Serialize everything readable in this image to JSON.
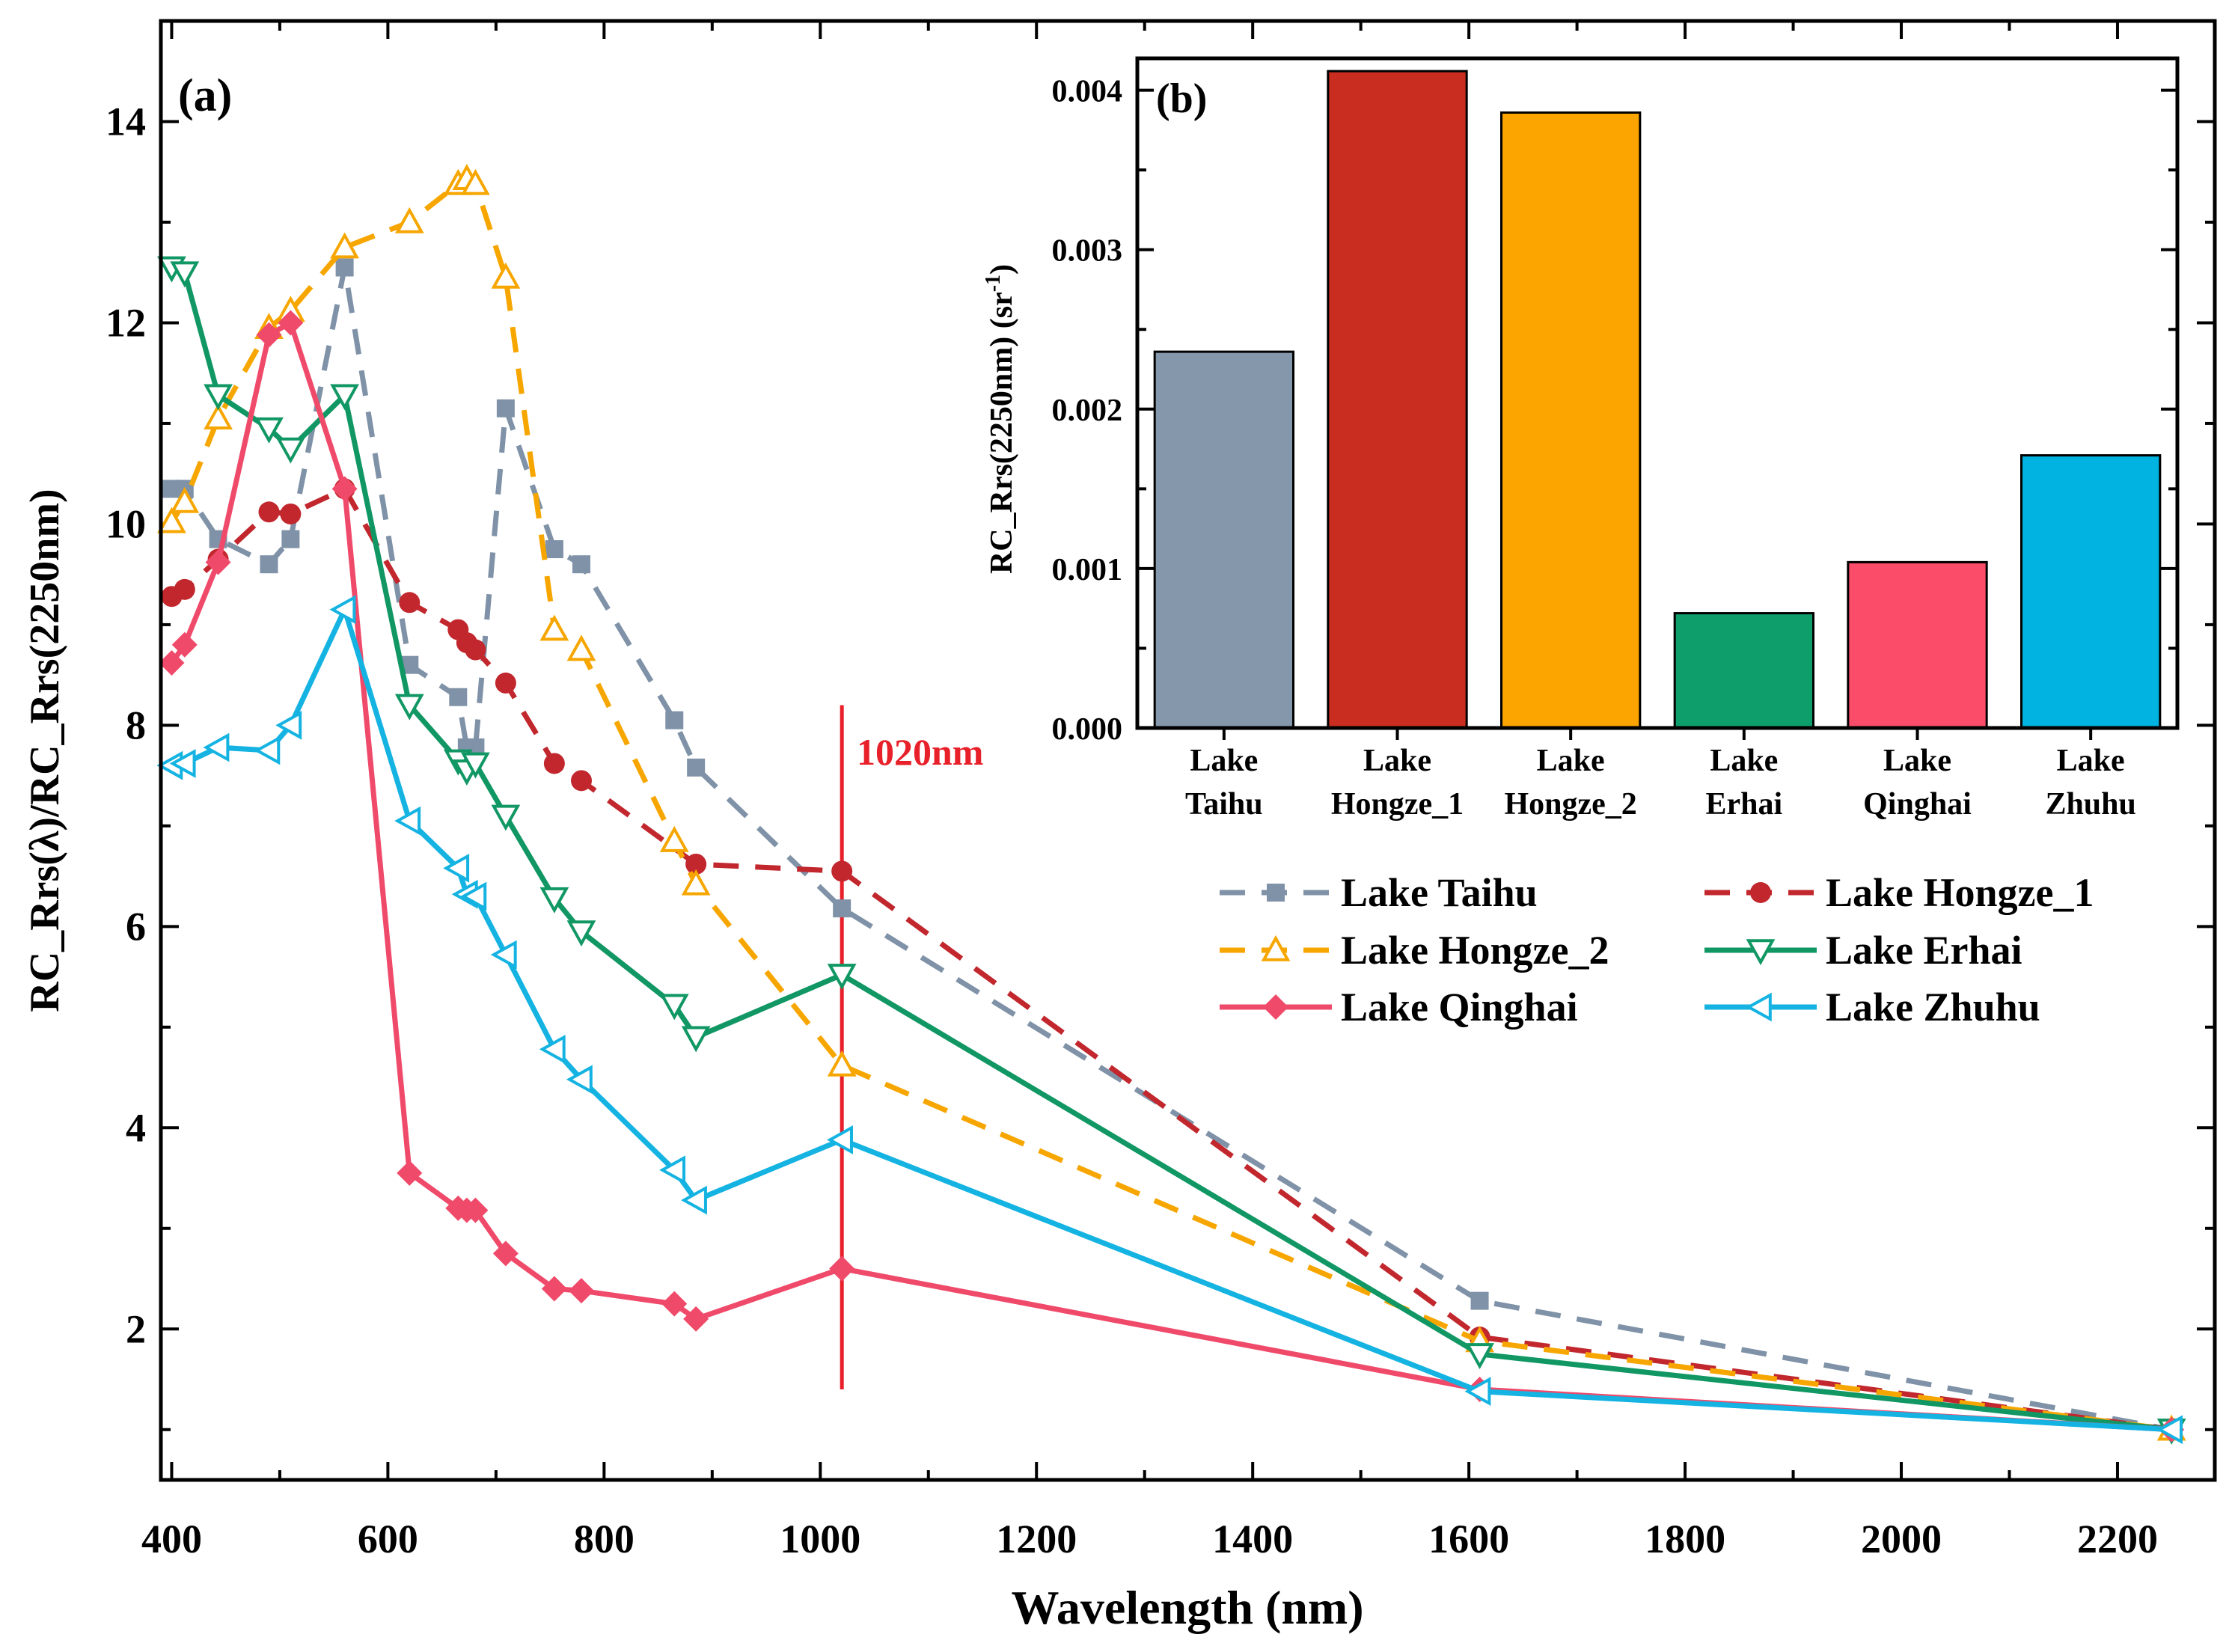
{
  "chart_data": [
    {
      "panel_label": "(a)",
      "type": "line",
      "xlabel": "Wavelength (nm)",
      "ylabel": "RC_Rrs(λ)/RC_Rrs(2250nm)",
      "xlim": [
        390,
        2290
      ],
      "ylim": [
        0.5,
        15
      ],
      "xticks": [
        "400",
        "600",
        "800",
        "1000",
        "1200",
        "1400",
        "1600",
        "1800",
        "2000",
        "2200"
      ],
      "yticks": [
        "2",
        "4",
        "6",
        "8",
        "10",
        "12",
        "14"
      ],
      "annotation": {
        "text": "1020nm",
        "x": 1020,
        "y_from": 1.4,
        "y_to": 8.2,
        "color": "#e8202a"
      },
      "series": [
        {
          "name": "Lake Taihu",
          "color": "#7f92a7",
          "dash": "dash",
          "marker": "square",
          "x": [
            400,
            412,
            443,
            490,
            510,
            560,
            620,
            665,
            673,
            681,
            709,
            754,
            779,
            865,
            885,
            1020,
            1610,
            2250
          ],
          "y": [
            10.35,
            10.35,
            9.85,
            9.6,
            9.85,
            12.55,
            8.6,
            8.28,
            7.78,
            7.78,
            11.15,
            9.75,
            9.6,
            8.05,
            7.58,
            6.18,
            2.28,
            1.0
          ]
        },
        {
          "name": "Lake Hongze_1",
          "color": "#c1272d",
          "dash": "dash",
          "marker": "circle",
          "x": [
            400,
            412,
            443,
            490,
            510,
            560,
            620,
            665,
            673,
            681,
            709,
            754,
            779,
            885,
            1020,
            1610,
            2250
          ],
          "y": [
            9.28,
            9.35,
            9.65,
            10.12,
            10.1,
            10.35,
            9.22,
            8.95,
            8.82,
            8.75,
            8.42,
            7.62,
            7.45,
            6.62,
            6.55,
            1.92,
            1.0
          ]
        },
        {
          "name": "Lake Hongze_2",
          "color": "#f7a600",
          "dash": "dash",
          "marker": "triangle-up-open",
          "x": [
            400,
            412,
            443,
            490,
            510,
            560,
            620,
            665,
            673,
            681,
            709,
            754,
            779,
            865,
            885,
            1020,
            1610,
            2250
          ],
          "y": [
            10.02,
            10.22,
            11.05,
            11.95,
            12.12,
            12.75,
            13.0,
            13.38,
            13.43,
            13.38,
            12.45,
            8.95,
            8.75,
            6.85,
            6.42,
            4.62,
            1.88,
            1.0
          ]
        },
        {
          "name": "Lake Erhai",
          "color": "#119764",
          "dash": "solid",
          "marker": "triangle-down-open",
          "x": [
            400,
            412,
            443,
            490,
            510,
            560,
            620,
            665,
            673,
            681,
            709,
            754,
            779,
            865,
            885,
            1020,
            1610,
            2250
          ],
          "y": [
            12.55,
            12.5,
            11.28,
            10.95,
            10.75,
            11.28,
            8.2,
            7.65,
            7.55,
            7.62,
            7.1,
            6.28,
            5.95,
            5.22,
            4.9,
            5.52,
            1.75,
            1.0
          ]
        },
        {
          "name": "Lake Qinghai",
          "color": "#f04a6b",
          "dash": "solid",
          "marker": "diamond",
          "x": [
            400,
            412,
            443,
            490,
            510,
            560,
            620,
            665,
            673,
            681,
            709,
            754,
            779,
            865,
            885,
            1020,
            1610,
            2250
          ],
          "y": [
            8.62,
            8.8,
            9.62,
            11.88,
            12.0,
            10.35,
            3.55,
            3.2,
            3.18,
            3.18,
            2.75,
            2.4,
            2.38,
            2.25,
            2.1,
            2.6,
            1.4,
            1.0
          ]
        },
        {
          "name": "Lake Zhuhu",
          "color": "#14b3e2",
          "dash": "solid",
          "marker": "triangle-left-open",
          "x": [
            400,
            412,
            443,
            490,
            510,
            560,
            620,
            665,
            673,
            681,
            709,
            754,
            779,
            865,
            885,
            1020,
            1610,
            2250
          ],
          "y": [
            7.6,
            7.62,
            7.78,
            7.75,
            8.0,
            9.15,
            7.05,
            6.58,
            6.32,
            6.3,
            5.72,
            4.78,
            4.48,
            3.58,
            3.28,
            3.88,
            1.38,
            1.0
          ]
        }
      ]
    },
    {
      "panel_label": "(b)",
      "type": "bar",
      "ylabel": "RC_Rrs(2250nm) (sr",
      "ylabel_sup": "-1",
      "ylabel_close": ")",
      "ylim": [
        0,
        0.0042
      ],
      "yticks": [
        "0.000",
        "0.001",
        "0.002",
        "0.003",
        "0.004"
      ],
      "categories": [
        {
          "line1": "Lake",
          "line2": "Taihu"
        },
        {
          "line1": "Lake",
          "line2": "Hongze_1"
        },
        {
          "line1": "Lake",
          "line2": "Hongze_2"
        },
        {
          "line1": "Lake",
          "line2": "Erhai"
        },
        {
          "line1": "Lake",
          "line2": "Qinghai"
        },
        {
          "line1": "Lake",
          "line2": "Zhuhu"
        }
      ],
      "values": [
        0.00236,
        0.00412,
        0.00386,
        0.00072,
        0.00104,
        0.00171
      ],
      "colors": [
        "#8497ab",
        "#c92d1f",
        "#fca400",
        "#0e9e6c",
        "#fb4d6a",
        "#00b3e0"
      ]
    }
  ]
}
